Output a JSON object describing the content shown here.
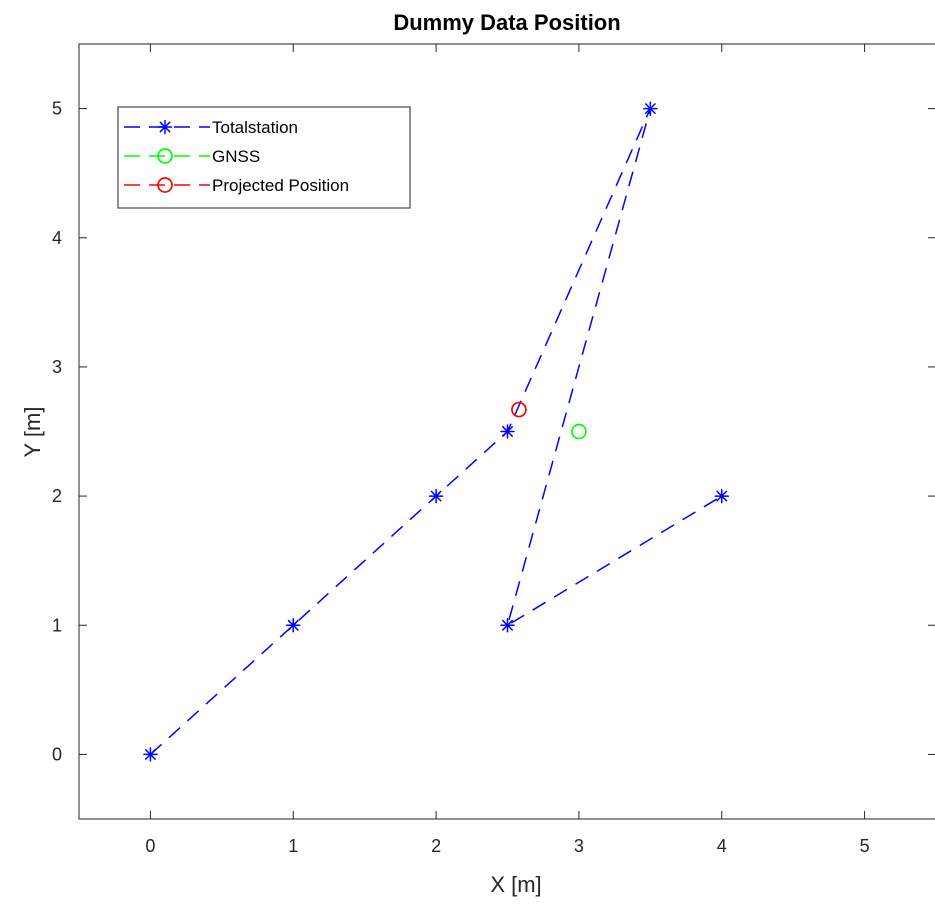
{
  "chart_data": {
    "type": "line",
    "title": "Dummy Data Position",
    "xlabel": "X [m]",
    "ylabel": "Y [m]",
    "xlim": [
      -0.5,
      5.5
    ],
    "ylim": [
      -0.5,
      5.5
    ],
    "xticks": [
      "0",
      "1",
      "2",
      "3",
      "4",
      "5"
    ],
    "yticks": [
      "0",
      "1",
      "2",
      "3",
      "4",
      "5"
    ],
    "grid": false,
    "legend_position": "top-left",
    "series": [
      {
        "name": "Totalstation",
        "color": "#0000ff",
        "line_style": "dashed",
        "marker": "asterisk",
        "x": [
          0,
          1,
          2,
          2.5,
          3.5,
          2.5,
          4
        ],
        "y": [
          0,
          1,
          2,
          2.5,
          5,
          1,
          2
        ]
      },
      {
        "name": "GNSS",
        "color": "#00ff00",
        "line_style": "dashed",
        "marker": "circle",
        "x": [
          3
        ],
        "y": [
          2.5
        ]
      },
      {
        "name": "Projected Position",
        "color": "#ff0000",
        "line_style": "dashed",
        "marker": "circle",
        "x": [
          2.58
        ],
        "y": [
          2.67
        ]
      }
    ]
  }
}
